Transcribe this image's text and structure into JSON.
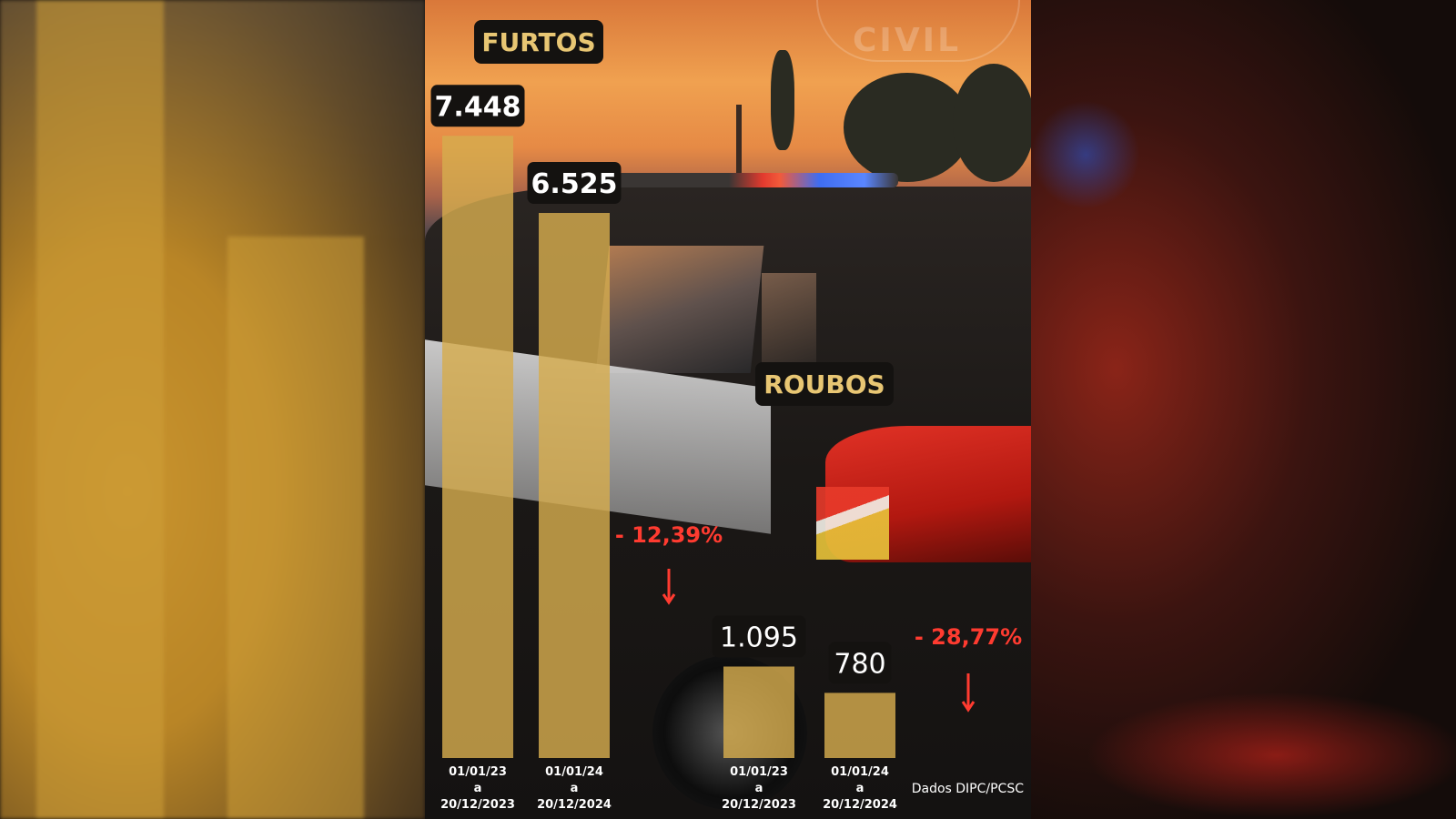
{
  "chart_data": [
    {
      "type": "bar",
      "title": "FURTOS",
      "categories": [
        "01/01/23\na\n20/12/2023",
        "01/01/24\na\n20/12/2024"
      ],
      "values": [
        7448,
        6525
      ],
      "value_labels": [
        "7.448",
        "6.525"
      ],
      "change_label": "- 12,39%"
    },
    {
      "type": "bar",
      "title": "ROUBOS",
      "categories": [
        "01/01/23\na\n20/12/2023",
        "01/01/24\na\n20/12/2024"
      ],
      "values": [
        1095,
        780
      ],
      "value_labels": [
        "1.095",
        "780"
      ],
      "change_label": "- 28,77%"
    }
  ],
  "source": "Dados DIPC/PCSC",
  "watermark": "CIVIL",
  "colors": {
    "bar": "#d6ac4e",
    "tag_background": "#141210",
    "title_text": "#e8c673",
    "decrease": "#ff3b30"
  }
}
